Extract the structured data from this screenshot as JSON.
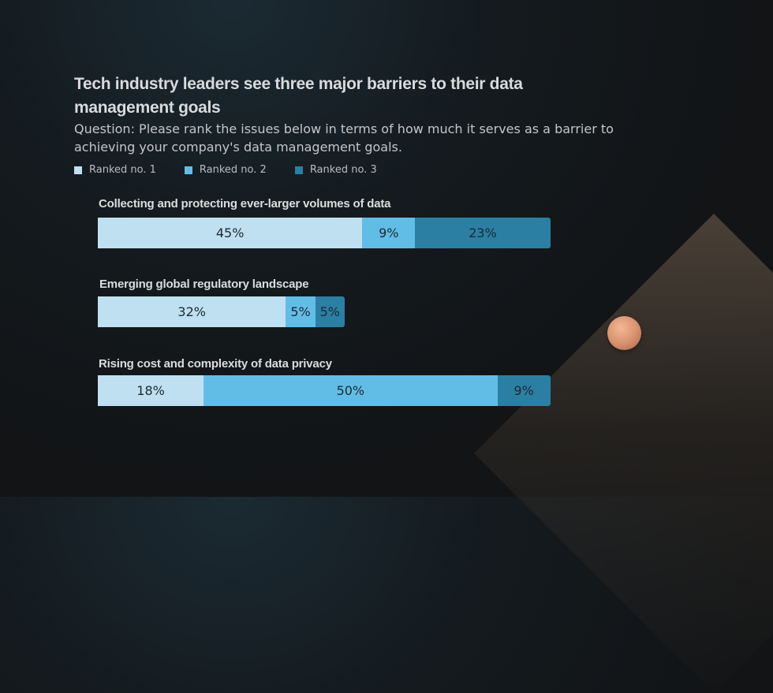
{
  "title": "Tech industry leaders see three major barriers to their data management goals",
  "subtitle": "Question: Please rank the issues below in terms of how much it serves as a barrier to achieving your company's data management goals.",
  "colors": {
    "rank1": "#bfe0f1",
    "rank2": "#62bde6",
    "rank3": "#2b7fa3"
  },
  "chart_data": {
    "type": "bar",
    "orientation": "horizontal",
    "stacked": true,
    "categories": [
      "Collecting and protecting ever-larger volumes of data",
      "Emerging global regulatory landscape",
      "Rising cost and complexity of data privacy"
    ],
    "series": [
      {
        "name": "Ranked no. 1",
        "values": [
          45,
          32,
          18
        ],
        "labels": [
          "45%",
          "32%",
          "18%"
        ]
      },
      {
        "name": "Ranked no. 2",
        "values": [
          9,
          5,
          50
        ],
        "labels": [
          "9%",
          "5%",
          "50%"
        ]
      },
      {
        "name": "Ranked no. 3",
        "values": [
          23,
          5,
          9
        ],
        "labels": [
          "23%",
          "5%",
          "9%"
        ]
      }
    ],
    "legend_position": "top-left",
    "grid": false
  }
}
